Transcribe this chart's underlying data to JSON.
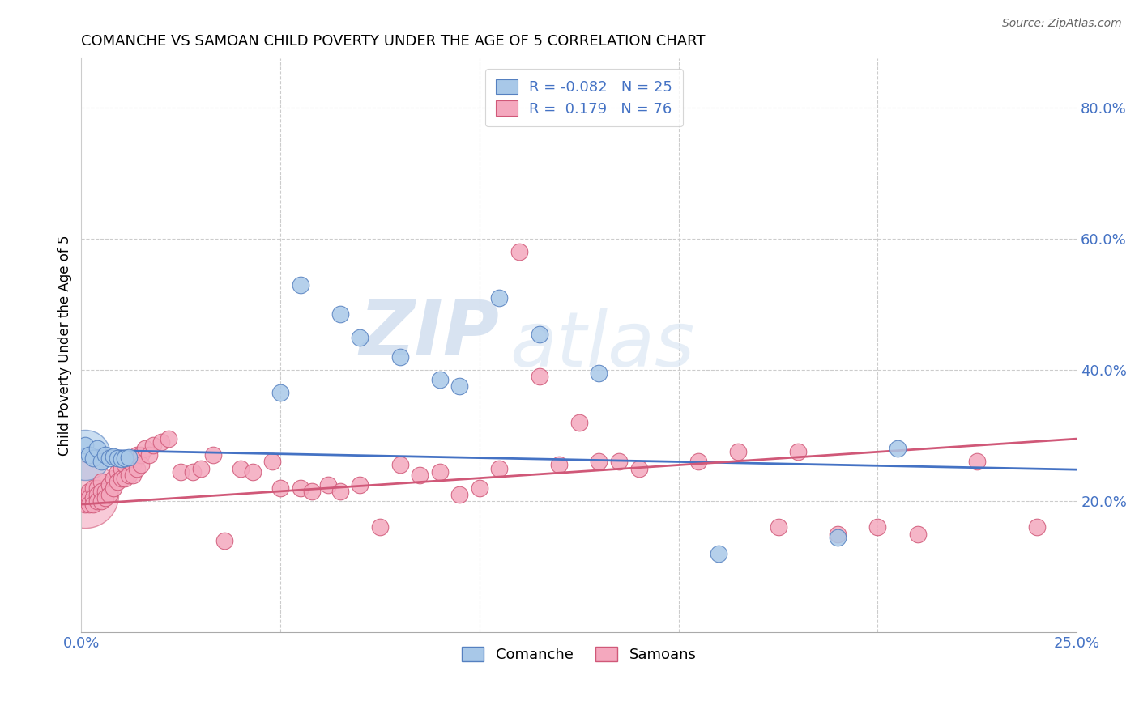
{
  "title": "COMANCHE VS SAMOAN CHILD POVERTY UNDER THE AGE OF 5 CORRELATION CHART",
  "source": "Source: ZipAtlas.com",
  "ylabel": "Child Poverty Under the Age of 5",
  "xlim": [
    0.0,
    0.25
  ],
  "ylim": [
    0.0,
    0.875
  ],
  "xticks": [
    0.0,
    0.05,
    0.1,
    0.15,
    0.2,
    0.25
  ],
  "xticklabels": [
    "0.0%",
    "",
    "",
    "",
    "",
    "25.0%"
  ],
  "yticks_right": [
    0.2,
    0.4,
    0.6,
    0.8
  ],
  "ytick_right_labels": [
    "20.0%",
    "40.0%",
    "60.0%",
    "80.0%"
  ],
  "r_comanche": -0.082,
  "n_comanche": 25,
  "r_samoan": 0.179,
  "n_samoan": 76,
  "comanche_color": "#a8c8e8",
  "samoan_color": "#f4a8be",
  "comanche_edge_color": "#5580c0",
  "samoan_edge_color": "#d05878",
  "comanche_line_color": "#4472c4",
  "samoan_line_color": "#d05878",
  "watermark_zip": "ZIP",
  "watermark_atlas": "atlas",
  "comanche_trend_x0": 0.0,
  "comanche_trend_y0": 0.278,
  "comanche_trend_x1": 0.25,
  "comanche_trend_y1": 0.248,
  "samoan_trend_x0": 0.0,
  "samoan_trend_y0": 0.195,
  "samoan_trend_x1": 0.25,
  "samoan_trend_y1": 0.295,
  "comanche_x": [
    0.001,
    0.002,
    0.003,
    0.004,
    0.005,
    0.006,
    0.007,
    0.008,
    0.009,
    0.01,
    0.011,
    0.012,
    0.05,
    0.055,
    0.065,
    0.07,
    0.08,
    0.09,
    0.095,
    0.105,
    0.115,
    0.13,
    0.16,
    0.19,
    0.205
  ],
  "comanche_y": [
    0.285,
    0.27,
    0.265,
    0.28,
    0.26,
    0.27,
    0.265,
    0.268,
    0.265,
    0.264,
    0.265,
    0.267,
    0.365,
    0.53,
    0.485,
    0.45,
    0.42,
    0.385,
    0.375,
    0.51,
    0.455,
    0.395,
    0.12,
    0.145,
    0.28
  ],
  "samoan_x": [
    0.001,
    0.001,
    0.002,
    0.002,
    0.002,
    0.003,
    0.003,
    0.003,
    0.004,
    0.004,
    0.004,
    0.005,
    0.005,
    0.005,
    0.006,
    0.006,
    0.007,
    0.007,
    0.008,
    0.008,
    0.009,
    0.009,
    0.01,
    0.01,
    0.011,
    0.011,
    0.012,
    0.012,
    0.013,
    0.013,
    0.014,
    0.014,
    0.015,
    0.015,
    0.016,
    0.017,
    0.018,
    0.02,
    0.022,
    0.025,
    0.028,
    0.03,
    0.033,
    0.036,
    0.04,
    0.043,
    0.048,
    0.05,
    0.055,
    0.058,
    0.062,
    0.065,
    0.07,
    0.075,
    0.08,
    0.085,
    0.09,
    0.095,
    0.1,
    0.105,
    0.11,
    0.115,
    0.12,
    0.125,
    0.13,
    0.135,
    0.14,
    0.155,
    0.165,
    0.175,
    0.18,
    0.19,
    0.2,
    0.21,
    0.225,
    0.24
  ],
  "samoan_y": [
    0.205,
    0.195,
    0.215,
    0.205,
    0.195,
    0.22,
    0.205,
    0.195,
    0.22,
    0.21,
    0.2,
    0.23,
    0.215,
    0.2,
    0.215,
    0.205,
    0.225,
    0.21,
    0.235,
    0.22,
    0.245,
    0.23,
    0.25,
    0.235,
    0.255,
    0.235,
    0.26,
    0.24,
    0.255,
    0.24,
    0.27,
    0.25,
    0.27,
    0.255,
    0.28,
    0.27,
    0.285,
    0.29,
    0.295,
    0.245,
    0.245,
    0.25,
    0.27,
    0.14,
    0.25,
    0.245,
    0.26,
    0.22,
    0.22,
    0.215,
    0.225,
    0.215,
    0.225,
    0.16,
    0.255,
    0.24,
    0.245,
    0.21,
    0.22,
    0.25,
    0.58,
    0.39,
    0.255,
    0.32,
    0.26,
    0.26,
    0.25,
    0.26,
    0.275,
    0.16,
    0.275,
    0.15,
    0.16,
    0.15,
    0.26,
    0.16
  ],
  "large_bubble_samoan_x": [
    0.001
  ],
  "large_bubble_samoan_y": [
    0.21
  ],
  "large_bubble_samoan_s": [
    3500
  ],
  "large_bubble_comanche_x": [
    0.001
  ],
  "large_bubble_comanche_y": [
    0.27
  ],
  "large_bubble_comanche_s": [
    2000
  ]
}
